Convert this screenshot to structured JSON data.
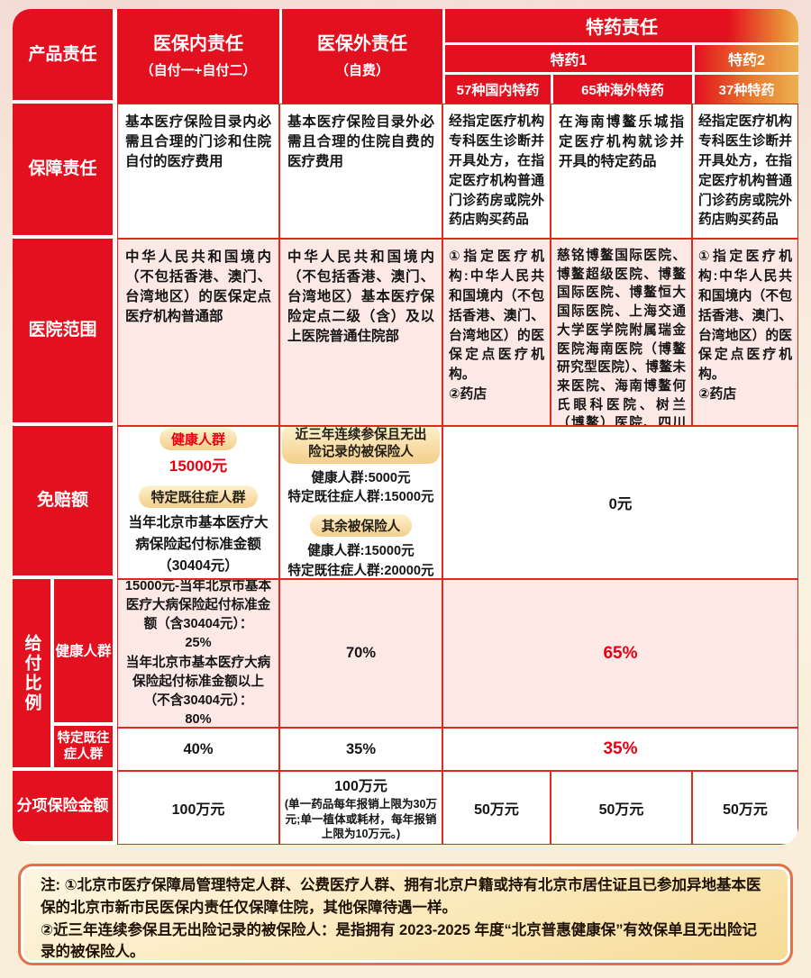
{
  "header": {
    "product": "产品责任",
    "in_title": "医保内责任",
    "in_sub": "（自付一+自付二）",
    "out_title": "医保外责任",
    "out_sub": "（自费）",
    "sd_title": "特药责任",
    "sd_group1": "特药1",
    "sd_group2": "特药2",
    "sd_sub1": "57种国内特药",
    "sd_sub2": "65种海外特药",
    "sd_sub3": "37种特药"
  },
  "coverage": {
    "label": "保障责任",
    "in": "基本医疗保险目录内必需且合理的门诊和住院自付的医疗费用",
    "out": "基本医疗保险目录外必需且合理的住院自费的医疗费用",
    "d1": "经指定医疗机构专科医生诊断并开具处方，在指定医疗机构普通门诊药房或院外药店购买药品",
    "d2": "在海南博鳌乐城指定医疗机构就诊并开具的特定药品",
    "d3": "经指定医疗机构专科医生诊断并开具处方，在指定医疗机构普通门诊药房或院外药店购买药品"
  },
  "hospital": {
    "label": "医院范围",
    "in": "中华人民共和国境内（不包括香港、澳门、台湾地区）的医保定点医疗机构普通部",
    "out": "中华人民共和国境内（不包括香港、澳门、台湾地区）基本医疗保险定点二级（含）及以上医院普通住院部",
    "d1": "①指定医疗机构:中华人民共和国境内（不包括香港、澳门、台湾地区）的医保定点医疗机构。\n②药店",
    "d2": "慈铭博鳌国际医院、博鳌超级医院、博鳌国际医院、博鳌恒大国际医院、上海交通大学医学院附属瑞金医院海南医院（博鳌研究型医院）、博鳌未来医院、海南博鳌何氏眼科医院、树兰（博鳌）医院、四川大学华西乐城医院",
    "d3": "①指定医疗机构:中华人民共和国境内（不包括香港、澳门、台湾地区）的医保定点医疗机构。\n②药店"
  },
  "deductible": {
    "label": "免赔额",
    "in": {
      "badge1": "健康人群",
      "amount1": "15000元",
      "badge2": "特定既往症人群",
      "desc2": "当年北京市基本医疗大病保险起付标准金额（30404元）"
    },
    "out": {
      "badge1": "近三年连续参保且无出险记录的被保险人",
      "l1": "健康人群:5000元",
      "l2": "特定既往症人群:15000元",
      "badge2": "其余被保险人",
      "l3": "健康人群:15000元",
      "l4": "特定既往症人群:20000元"
    },
    "drugs": "0元"
  },
  "payout": {
    "label": "给付比例",
    "sub_healthy": "健康人群",
    "sub_pre": "特定既往症人群",
    "healthy": {
      "in": "15000元-当年北京市基本医疗大病保险起付标准金额（含30404元）：\n25%\n当年北京市基本医疗大病保险起付标准金额以上（不含30404元）：\n80%",
      "out": "70%",
      "drugs": "65%"
    },
    "pre": {
      "in": "40%",
      "out": "35%",
      "drugs": "35%"
    }
  },
  "sum": {
    "label": "分项保险金额",
    "in": "100万元",
    "out_main": "100万元",
    "out_note": "(单一药品每年报销上限为30万元;单一植体或耗材，每年报销上限为10万元。)",
    "d1": "50万元",
    "d2": "50万元",
    "d3": "50万元"
  },
  "notes": {
    "line1": "注: ①北京市医疗保障局管理特定人群、公费医疗人群、拥有北京户籍或持有北京市居住证且已参加异地基本医保的北京市新市民医保内责任仅保障住院，其他保障待遇一样。",
    "line2": "②近三年连续参保且无出险记录的被保险人：是指拥有 2023-2025 年度“北京普惠健康保”有效保单且无出险记录的被保险人。"
  },
  "colors": {
    "red": "#e60012",
    "gold": "#edb052",
    "pink": "#fce9e6",
    "badge_gold": "#f3cf8b",
    "note_border": "#e2714b"
  }
}
